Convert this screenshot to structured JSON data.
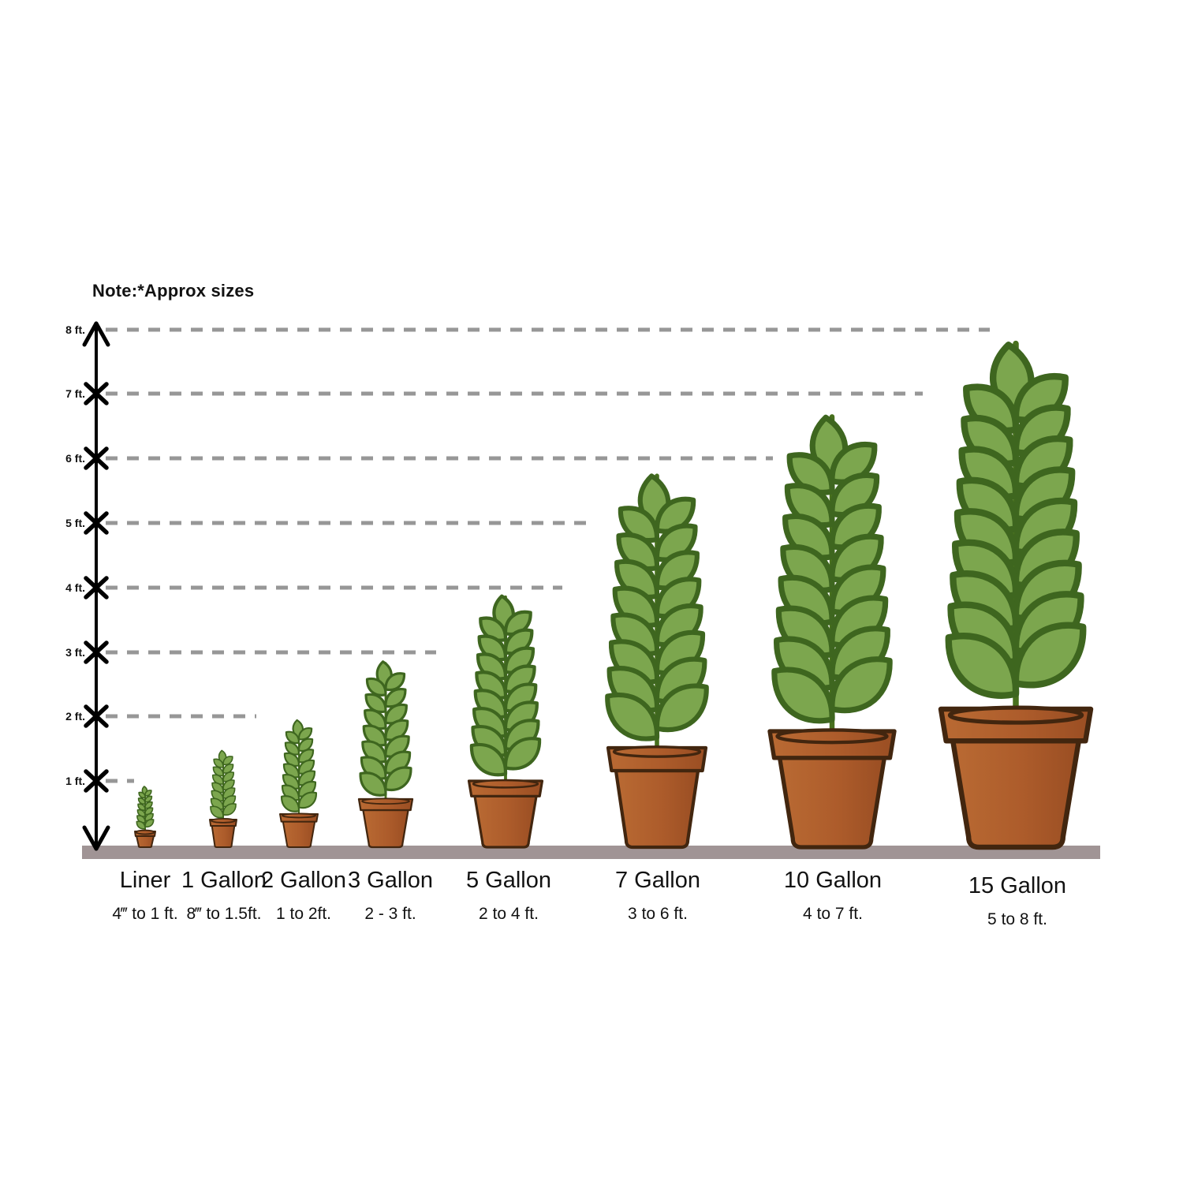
{
  "note": "Note:*Approx sizes",
  "y_axis": {
    "tick_labels": [
      "1 ft.",
      "2 ft.",
      "3 ft.",
      "4 ft.",
      "5 ft.",
      "6 ft.",
      "7 ft.",
      "8 ft."
    ]
  },
  "chart_data": {
    "type": "bar",
    "subtype": "pictorial-plant-container-size-chart",
    "note": "Note:*Approx sizes",
    "categories": [
      "Liner",
      "1 Gallon",
      "2 Gallon",
      "3 Gallon",
      "5 Gallon",
      "7 Gallon",
      "10 Gallon",
      "15 Gallon"
    ],
    "size_ranges": [
      "4‴ to 1 ft.",
      "8‴ to 1.5ft.",
      "1 to 2ft.",
      "2 - 3 ft.",
      "2 to 4 ft.",
      "3 to 6 ft.",
      "4 to 7 ft.",
      "5 to 8 ft."
    ],
    "max_height_ft": [
      1,
      1.5,
      2,
      3,
      4,
      6,
      7,
      8
    ],
    "min_height_ft": [
      0.33,
      0.67,
      1,
      2,
      2,
      3,
      4,
      5
    ],
    "y_tick_labels": [
      "1 ft.",
      "2 ft.",
      "3 ft.",
      "4 ft.",
      "5 ft.",
      "6 ft.",
      "7 ft.",
      "8 ft."
    ],
    "ylim": [
      0,
      8
    ],
    "grid": "horizontal dashed gray guide line at each foot level, each ending above the plant that reaches that height",
    "legend": "none",
    "colors": {
      "leaf": "#7ca64e",
      "leaf_outline": "#3e661f",
      "stem": "#48701e",
      "pot_light": "#b96a33",
      "pot": "#ad5c2b",
      "pot_dark": "#9a4e23",
      "pot_outline": "#42260f",
      "ground": "#a09495",
      "dashed_line": "#979797",
      "axis": "#000000",
      "text": "#121212",
      "background": "#ffffff"
    }
  }
}
